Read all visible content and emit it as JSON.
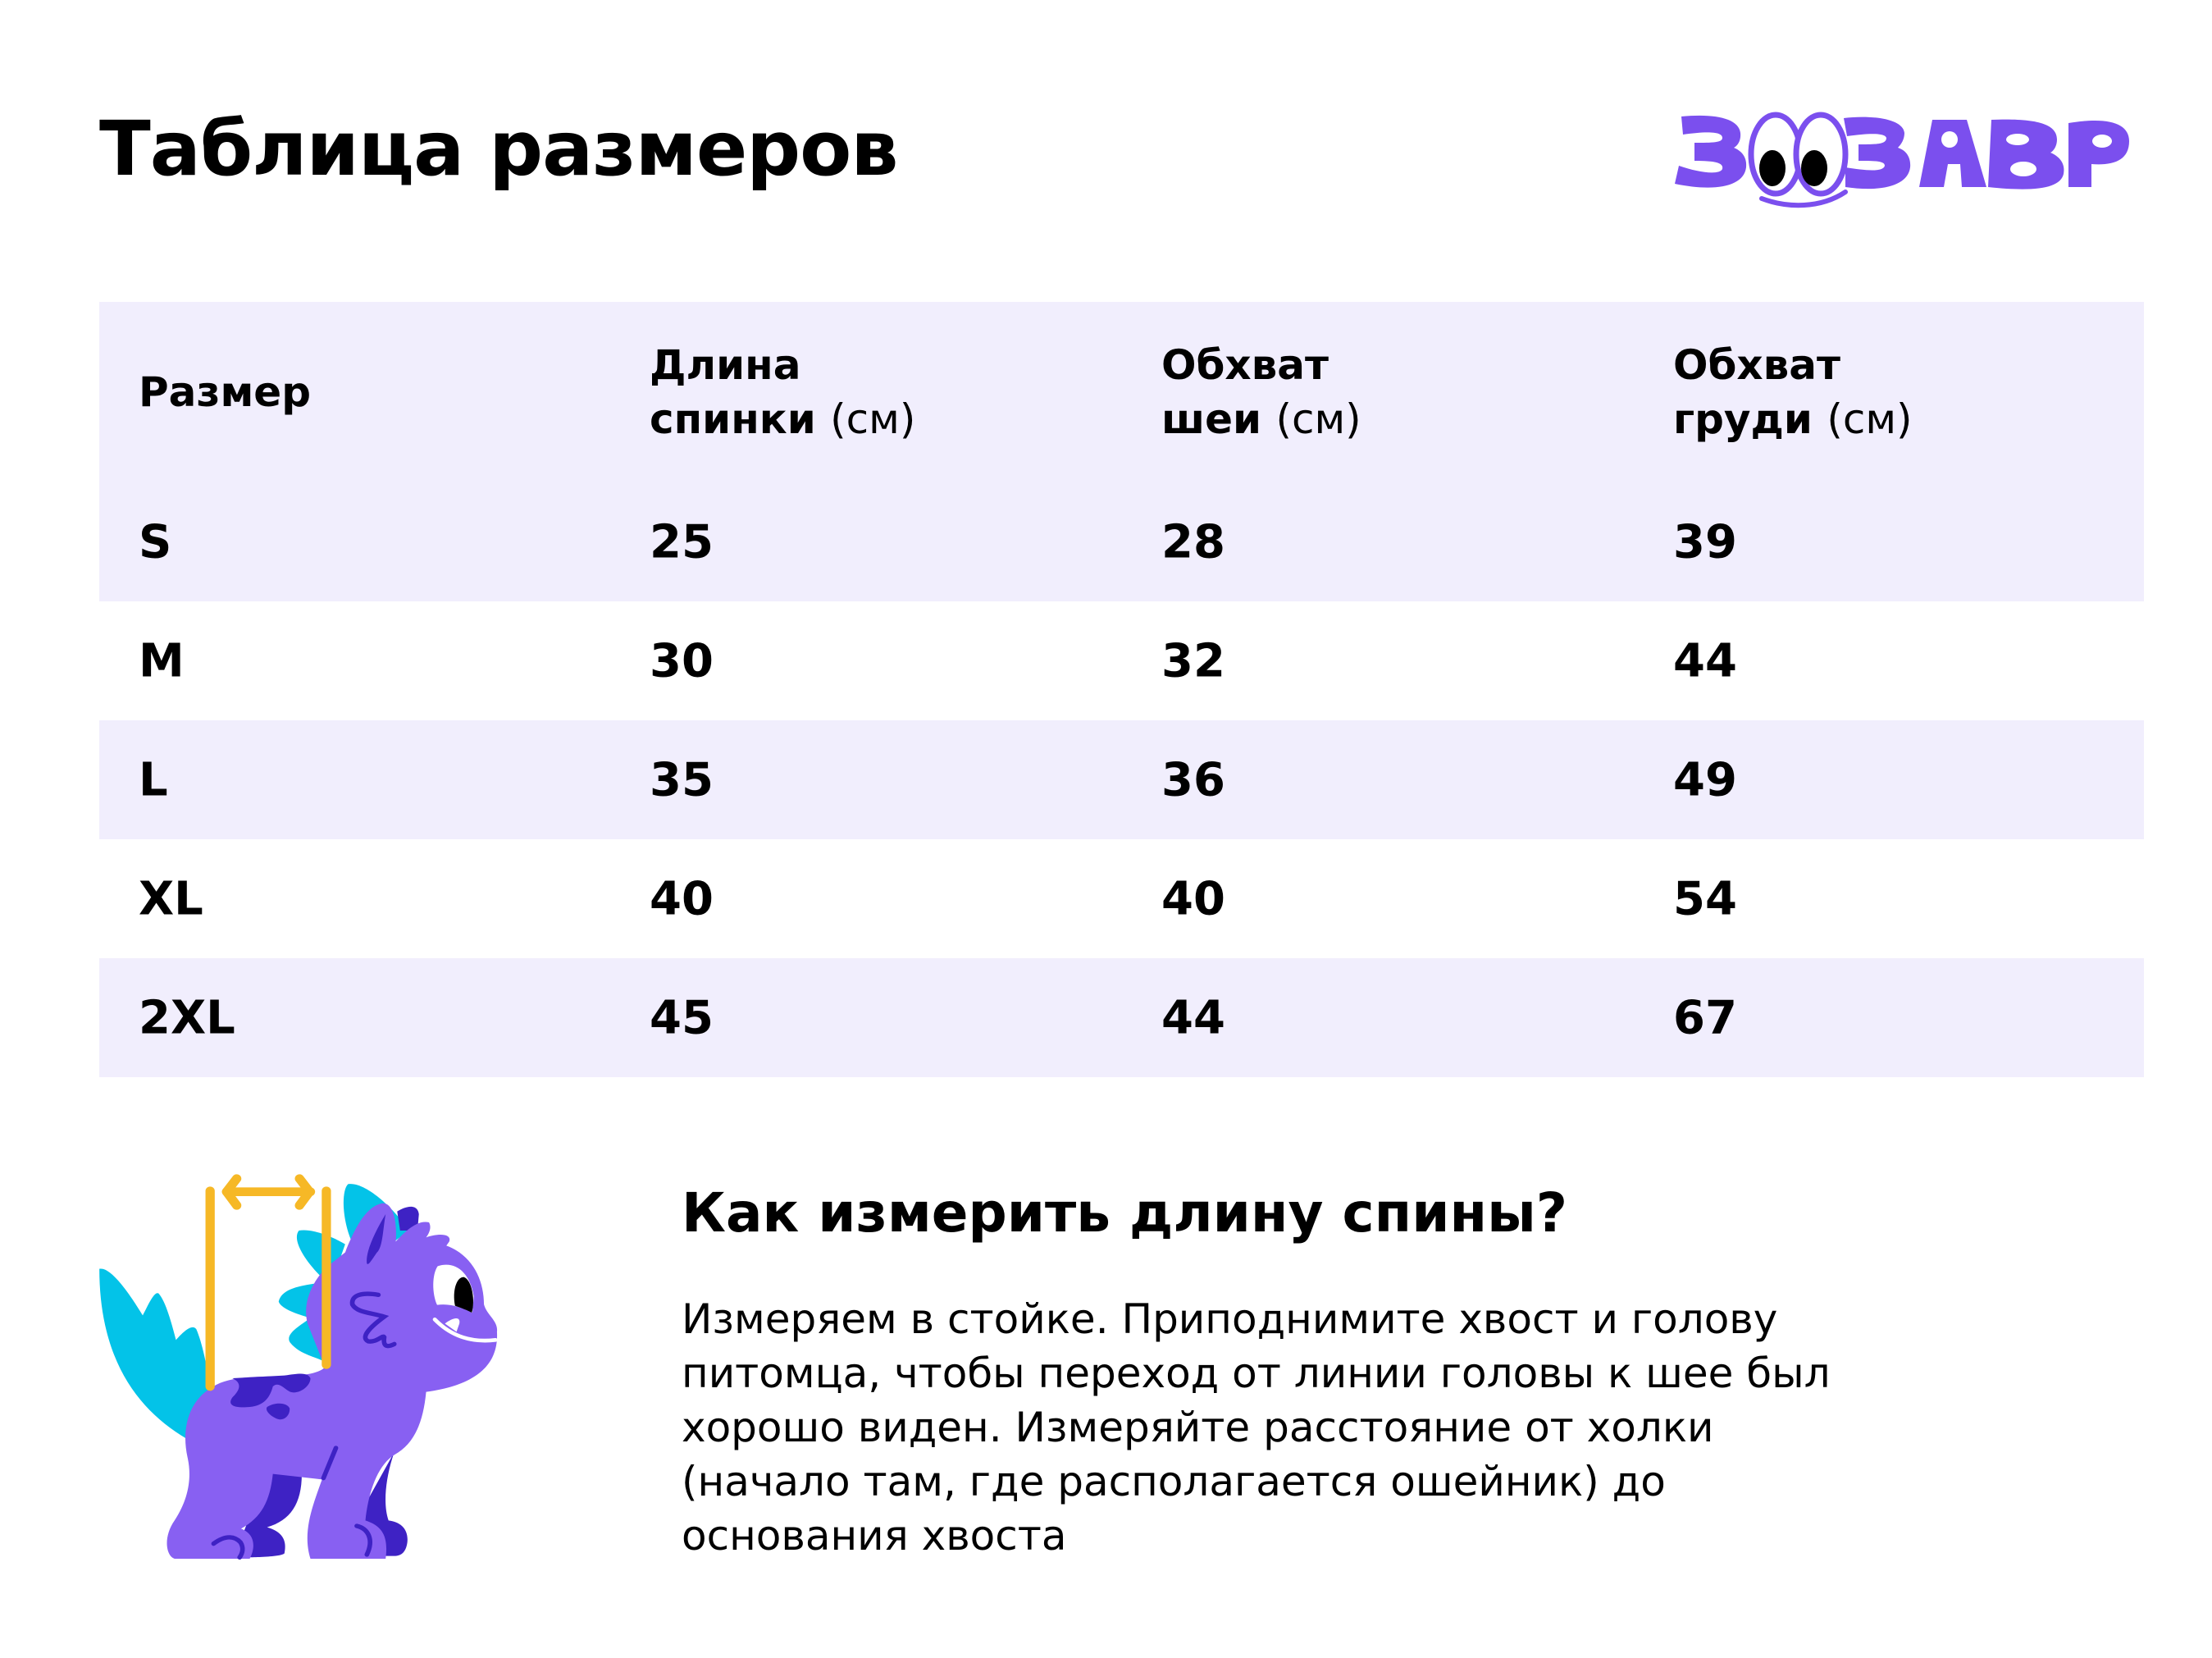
{
  "header": {
    "title": "Таблица размеров",
    "logo_text": "ЗООЗАВР"
  },
  "colors": {
    "brand": "#7B4FEE",
    "table_shade": "#F1EEFD",
    "dino_body": "#8860F2",
    "dino_dark": "#3E22C4",
    "dino_spikes": "#03C3E8",
    "measure_marker": "#F6B826"
  },
  "table": {
    "headers": [
      {
        "line1": "Размер",
        "line2": "",
        "unit": ""
      },
      {
        "line1": "Длина",
        "line2": "спинки",
        "unit": "(см)"
      },
      {
        "line1": "Обхват",
        "line2": "шеи",
        "unit": "(см)"
      },
      {
        "line1": "Обхват",
        "line2": "груди",
        "unit": "(см)"
      }
    ],
    "rows": [
      [
        "S",
        "25",
        "28",
        "39"
      ],
      [
        "M",
        "30",
        "32",
        "44"
      ],
      [
        "L",
        "35",
        "36",
        "49"
      ],
      [
        "XL",
        "40",
        "40",
        "54"
      ],
      [
        "2XL",
        "45",
        "44",
        "67"
      ]
    ]
  },
  "howto": {
    "title": "Как измерить длину спины?",
    "lines": [
      "Измеряем в стойке. Приподнимите хвост и голову",
      "питомца, чтобы переход от линии головы к шее был",
      "хорошо виден. Измеряйте расстояние от холки",
      "(начало там, где располагается ошейник) до",
      "основания хвоста"
    ]
  },
  "illustration": {
    "icon": "dino-measure-back-illustration"
  }
}
